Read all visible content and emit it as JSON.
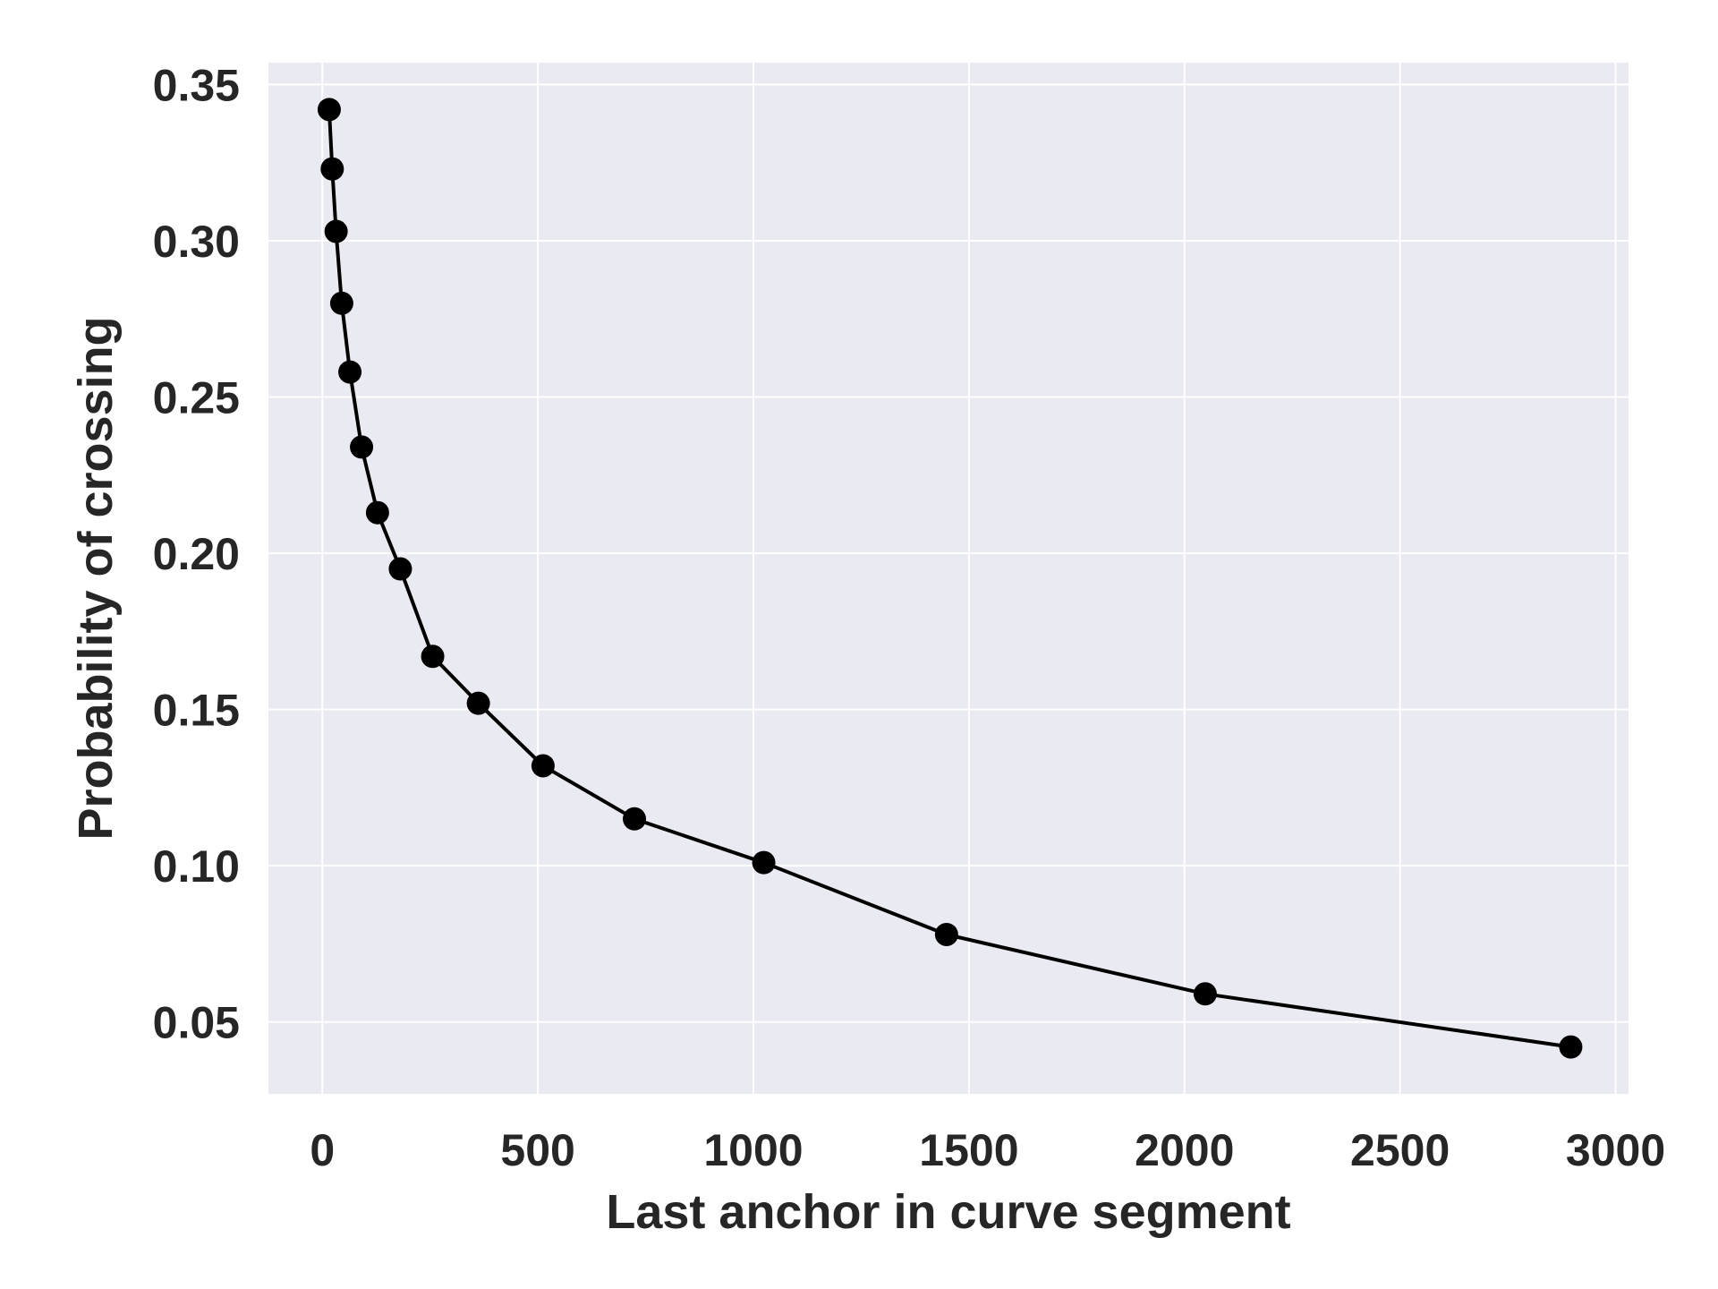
{
  "chart_data": {
    "type": "line",
    "title": "",
    "xlabel": "Last anchor in curve segment",
    "ylabel": "Probability of crossing",
    "xlim": [
      -125,
      3030
    ],
    "ylim": [
      0.027,
      0.357
    ],
    "xticks": [
      0,
      500,
      1000,
      1500,
      2000,
      2500,
      3000
    ],
    "yticks": [
      0.05,
      0.1,
      0.15,
      0.2,
      0.25,
      0.3,
      0.35
    ],
    "xtick_labels": [
      "0",
      "500",
      "1000",
      "1500",
      "2000",
      "2500",
      "3000"
    ],
    "ytick_labels": [
      "0.05",
      "0.10",
      "0.15",
      "0.20",
      "0.25",
      "0.30",
      "0.35"
    ],
    "grid": true,
    "legend": "none",
    "colors": {
      "plot_background": "#eaeaf2",
      "grid": "#ffffff",
      "line": "#000000",
      "marker": "#000000",
      "text": "#262626"
    },
    "series": [
      {
        "x": [
          16,
          23,
          32,
          45,
          64,
          91,
          128,
          181,
          256,
          362,
          512,
          724,
          1024,
          1448,
          2048,
          2896
        ],
        "y": [
          0.342,
          0.323,
          0.303,
          0.28,
          0.258,
          0.234,
          0.213,
          0.195,
          0.167,
          0.152,
          0.132,
          0.115,
          0.101,
          0.078,
          0.059,
          0.042
        ]
      }
    ]
  }
}
